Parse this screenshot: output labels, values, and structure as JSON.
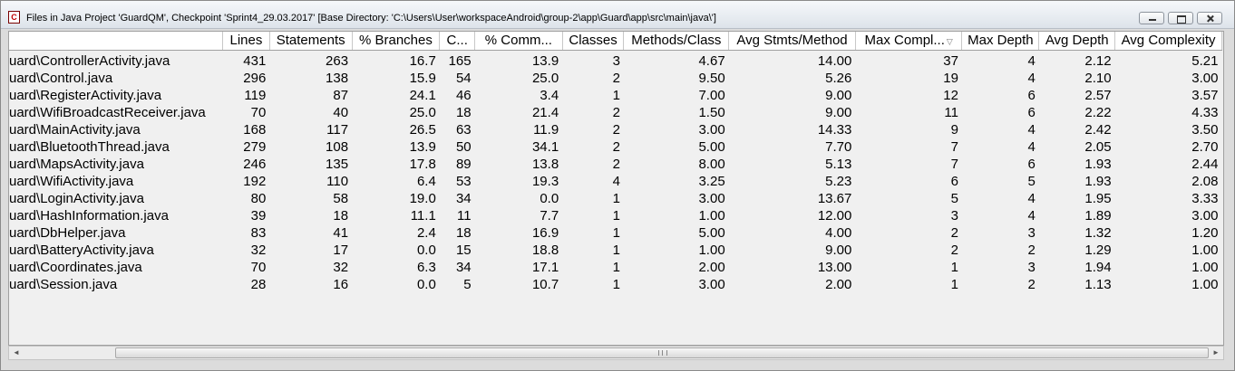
{
  "window": {
    "title": "Files in Java Project 'GuardQM', Checkpoint 'Sprint4_29.03.2017'  [Base Directory: 'C:\\Users\\User\\workspaceAndroid\\group-2\\app\\Guard\\app\\src\\main\\java\\']",
    "icon": "sourcemonitor-app-icon",
    "icon_glyph": "C"
  },
  "table": {
    "columns": [
      {
        "label": ""
      },
      {
        "label": "Lines"
      },
      {
        "label": "Statements"
      },
      {
        "label": "% Branches"
      },
      {
        "label": "C..."
      },
      {
        "label": "% Comm..."
      },
      {
        "label": "Classes"
      },
      {
        "label": "Methods/Class"
      },
      {
        "label": "Avg Stmts/Method"
      },
      {
        "label": "Max Compl...",
        "sorted": true,
        "sort_glyph": "▽"
      },
      {
        "label": "Max Depth"
      },
      {
        "label": "Avg Depth"
      },
      {
        "label": "Avg Complexity"
      }
    ],
    "rows": [
      [
        "uard\\ControllerActivity.java",
        "431",
        "263",
        "16.7",
        "165",
        "13.9",
        "3",
        "4.67",
        "14.00",
        "37",
        "4",
        "2.12",
        "5.21"
      ],
      [
        "uard\\Control.java",
        "296",
        "138",
        "15.9",
        "54",
        "25.0",
        "2",
        "9.50",
        "5.26",
        "19",
        "4",
        "2.10",
        "3.00"
      ],
      [
        "uard\\RegisterActivity.java",
        "119",
        "87",
        "24.1",
        "46",
        "3.4",
        "1",
        "7.00",
        "9.00",
        "12",
        "6",
        "2.57",
        "3.57"
      ],
      [
        "uard\\WifiBroadcastReceiver.java",
        "70",
        "40",
        "25.0",
        "18",
        "21.4",
        "2",
        "1.50",
        "9.00",
        "11",
        "6",
        "2.22",
        "4.33"
      ],
      [
        "uard\\MainActivity.java",
        "168",
        "117",
        "26.5",
        "63",
        "11.9",
        "2",
        "3.00",
        "14.33",
        "9",
        "4",
        "2.42",
        "3.50"
      ],
      [
        "uard\\BluetoothThread.java",
        "279",
        "108",
        "13.9",
        "50",
        "34.1",
        "2",
        "5.00",
        "7.70",
        "7",
        "4",
        "2.05",
        "2.70"
      ],
      [
        "uard\\MapsActivity.java",
        "246",
        "135",
        "17.8",
        "89",
        "13.8",
        "2",
        "8.00",
        "5.13",
        "7",
        "6",
        "1.93",
        "2.44"
      ],
      [
        "uard\\WifiActivity.java",
        "192",
        "110",
        "6.4",
        "53",
        "19.3",
        "4",
        "3.25",
        "5.23",
        "6",
        "5",
        "1.93",
        "2.08"
      ],
      [
        "uard\\LoginActivity.java",
        "80",
        "58",
        "19.0",
        "34",
        "0.0",
        "1",
        "3.00",
        "13.67",
        "5",
        "4",
        "1.95",
        "3.33"
      ],
      [
        "uard\\HashInformation.java",
        "39",
        "18",
        "11.1",
        "11",
        "7.7",
        "1",
        "1.00",
        "12.00",
        "3",
        "4",
        "1.89",
        "3.00"
      ],
      [
        "uard\\DbHelper.java",
        "83",
        "41",
        "2.4",
        "18",
        "16.9",
        "1",
        "5.00",
        "4.00",
        "2",
        "3",
        "1.32",
        "1.20"
      ],
      [
        "uard\\BatteryActivity.java",
        "32",
        "17",
        "0.0",
        "15",
        "18.8",
        "1",
        "1.00",
        "9.00",
        "2",
        "2",
        "1.29",
        "1.00"
      ],
      [
        "uard\\Coordinates.java",
        "70",
        "32",
        "6.3",
        "34",
        "17.1",
        "1",
        "2.00",
        "13.00",
        "1",
        "3",
        "1.94",
        "1.00"
      ],
      [
        "uard\\Session.java",
        "28",
        "16",
        "0.0",
        "5",
        "10.7",
        "1",
        "3.00",
        "2.00",
        "1",
        "2",
        "1.13",
        "1.00"
      ]
    ]
  },
  "scrollbar": {
    "left_arrow": "◄",
    "right_arrow": "►"
  }
}
